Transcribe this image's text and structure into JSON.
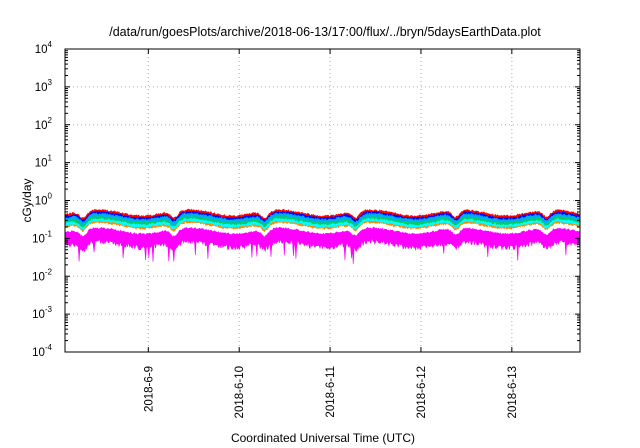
{
  "chart_data": {
    "type": "line",
    "title": "/data/run/goesPlots/archive/2018-06-13/17:00/flux/../bryn/5daysEarthData.plot",
    "xlabel": "Coordinated Universal Time (UTC)",
    "ylabel": "cGy/day",
    "yscale": "log",
    "ylim": [
      0.0001,
      10000
    ],
    "xlim": [
      "2018-06-08T02:00",
      "2018-06-13T18:00"
    ],
    "x_ticks": [
      "2018-6-9",
      "2018-6-10",
      "2018-6-11",
      "2018-6-12",
      "2018-6-13"
    ],
    "y_ticks": [
      {
        "base": "10",
        "exp": "-4"
      },
      {
        "base": "10",
        "exp": "-3"
      },
      {
        "base": "10",
        "exp": "-2"
      },
      {
        "base": "10",
        "exp": "-1"
      },
      {
        "base": "10",
        "exp": "0"
      },
      {
        "base": "10",
        "exp": "1"
      },
      {
        "base": "10",
        "exp": "2"
      },
      {
        "base": "10",
        "exp": "3"
      },
      {
        "base": "10",
        "exp": "4"
      }
    ],
    "grid": true,
    "legend": "none",
    "series_colors": [
      "#ff0000",
      "#0000ff",
      "#00aaff",
      "#00cc66",
      "#00ffff",
      "#ff8800",
      "#ffffff",
      "#ff00ff"
    ],
    "series_levels": [
      0.45,
      0.4,
      0.36,
      0.3,
      0.26,
      0.22,
      0.2,
      0.15
    ]
  }
}
